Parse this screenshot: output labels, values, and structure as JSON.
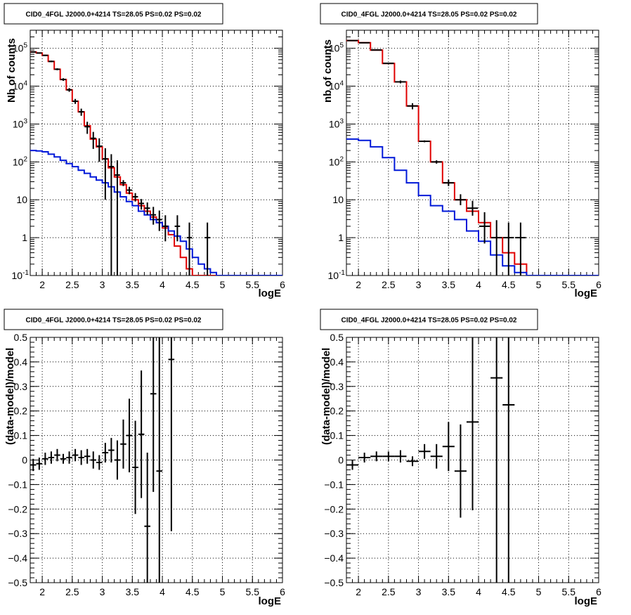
{
  "colors": {
    "data": "#000000",
    "total_model": "#e00000",
    "component": "#0018d8",
    "grid": "#000000",
    "background": "#ffffff"
  },
  "chart_data": [
    {
      "type": "line",
      "title": "CID0_4FGL J2000.0+4214 TS=28.05 PS=0.02 PS=0.02",
      "xlabel": "logE",
      "ylabel": "Nb of counts",
      "xlim": [
        1.8,
        6.0
      ],
      "ylim": [
        0.1,
        300000
      ],
      "yscale": "log",
      "grid": true,
      "x_ticks": [
        2,
        2.5,
        3,
        3.5,
        4,
        4.5,
        5,
        5.5,
        6
      ],
      "x_tick_labels": [
        "2",
        "2.5",
        "3",
        "3.5",
        "4",
        "4.5",
        "5",
        "5.5",
        "6"
      ],
      "y_ticks": [
        0.1,
        1,
        10,
        100,
        1000,
        10000,
        100000
      ],
      "y_tick_labels": [
        "10^-1",
        "1",
        "10",
        "10^2",
        "10^3",
        "10^4",
        "10^5"
      ],
      "bin_edges": [
        1.8,
        1.9,
        2.0,
        2.1,
        2.2,
        2.3,
        2.4,
        2.5,
        2.6,
        2.7,
        2.8,
        2.9,
        3.0,
        3.1,
        3.2,
        3.3,
        3.4,
        3.5,
        3.6,
        3.7,
        3.8,
        3.9,
        4.0,
        4.1,
        4.2,
        4.3,
        4.4,
        4.5,
        4.6,
        4.7,
        4.8,
        4.9,
        5.0,
        5.1,
        5.2,
        5.3,
        5.4,
        5.5,
        5.6,
        5.7,
        5.8,
        5.9,
        6.0
      ],
      "series": [
        {
          "style": "step",
          "color": "red",
          "values": [
            80000,
            75000,
            65000,
            45000,
            28000,
            15000,
            8000,
            4000,
            2100,
            900,
            400,
            250,
            120,
            70,
            40,
            25,
            15,
            10,
            7,
            5,
            3.5,
            2.5,
            1.8,
            1.2,
            0.6,
            0.3,
            0.15,
            0.1,
            0.1,
            0.1,
            0.1,
            0.1,
            0.1,
            0.1,
            0.1,
            0.1,
            0.1,
            0.1,
            0.1,
            0.1,
            0.1,
            0.1
          ]
        },
        {
          "style": "step",
          "color": "blue",
          "values": [
            200,
            195,
            185,
            160,
            135,
            110,
            90,
            75,
            60,
            50,
            40,
            33,
            28,
            22,
            16,
            12,
            9,
            7,
            5,
            4,
            3,
            2.5,
            2,
            1.5,
            1.1,
            0.8,
            0.5,
            0.3,
            0.2,
            0.15,
            0.12,
            0.1,
            0.1,
            0.1,
            0.1,
            0.1,
            0.1,
            0.1,
            0.1,
            0.1,
            0.1,
            0.1
          ]
        },
        {
          "style": "errorbar",
          "color": "black",
          "x": [
            1.85,
            1.95,
            2.05,
            2.15,
            2.25,
            2.35,
            2.45,
            2.55,
            2.65,
            2.75,
            2.85,
            2.95,
            3.05,
            3.15,
            3.25,
            3.35,
            3.45,
            3.55,
            3.65,
            3.75,
            3.85,
            3.95,
            4.05,
            4.25,
            4.45,
            4.75
          ],
          "y": [
            80000,
            75000,
            65000,
            45000,
            28000,
            15000,
            8000,
            4000,
            2100,
            850,
            420,
            260,
            120,
            75,
            45,
            28,
            18,
            12,
            8,
            6,
            4,
            3,
            2,
            2,
            1,
            1
          ],
          "yerr_low": [
            3000,
            2800,
            2600,
            2100,
            1700,
            1200,
            900,
            600,
            450,
            300,
            200,
            160,
            110,
            85,
            65,
            5,
            4,
            3,
            2.5,
            2,
            1.8,
            1.5,
            1.2,
            1.2,
            0.92,
            0.92
          ],
          "yerr_high": [
            3000,
            2800,
            2600,
            2100,
            1700,
            1200,
            900,
            600,
            450,
            300,
            200,
            160,
            110,
            85,
            65,
            5,
            4,
            3,
            2.5,
            2.5,
            2.5,
            2.2,
            1.9,
            1.9,
            1.5,
            1.5
          ]
        }
      ]
    },
    {
      "type": "line",
      "title": "CID0_4FGL J2000.0+4214 TS=28.05 PS=0.02 PS=0.02",
      "xlabel": "logE",
      "ylabel": "nb of counts",
      "xlim": [
        1.8,
        6.0
      ],
      "ylim": [
        0.1,
        300000
      ],
      "yscale": "log",
      "grid": true,
      "x_ticks": [
        2,
        2.5,
        3,
        3.5,
        4,
        4.5,
        5,
        5.5,
        6
      ],
      "x_tick_labels": [
        "2",
        "2.5",
        "3",
        "3.5",
        "4",
        "4.5",
        "5",
        "5.5",
        "6"
      ],
      "y_ticks": [
        0.1,
        1,
        10,
        100,
        1000,
        10000,
        100000
      ],
      "y_tick_labels": [
        "10^-1",
        "1",
        "10",
        "10^2",
        "10^3",
        "10^4",
        "10^5"
      ],
      "bin_edges": [
        1.8,
        2.0,
        2.2,
        2.4,
        2.6,
        2.8,
        3.0,
        3.2,
        3.4,
        3.6,
        3.8,
        4.0,
        4.2,
        4.4,
        4.6,
        4.8,
        5.0,
        5.2,
        5.4,
        5.6,
        5.8,
        6.0
      ],
      "series": [
        {
          "style": "step",
          "color": "red",
          "values": [
            160000,
            140000,
            90000,
            40000,
            13000,
            3000,
            350,
            100,
            28,
            10,
            5,
            2.5,
            1,
            0.4,
            0.2,
            0.1,
            0.1,
            0.1,
            0.1,
            0.1,
            0.1
          ]
        },
        {
          "style": "step",
          "color": "blue",
          "values": [
            400,
            370,
            250,
            130,
            60,
            28,
            13,
            7,
            5,
            3,
            1.5,
            0.8,
            0.35,
            0.18,
            0.12,
            0.1,
            0.1,
            0.1,
            0.1,
            0.1,
            0.1
          ]
        },
        {
          "style": "errorbar",
          "color": "black",
          "x": [
            1.9,
            2.1,
            2.3,
            2.5,
            2.7,
            2.9,
            3.1,
            3.3,
            3.5,
            3.7,
            3.9,
            4.1,
            4.3,
            4.5,
            4.7
          ],
          "y": [
            160000,
            140000,
            90000,
            40000,
            13000,
            3000,
            350,
            100,
            28,
            10,
            6,
            2,
            1,
            1,
            1
          ],
          "yerr_low": [
            4000,
            3700,
            3000,
            2000,
            1100,
            550,
            20,
            10,
            5,
            2.8,
            2.2,
            1.3,
            0.9,
            0.92,
            0.92
          ],
          "yerr_high": [
            4000,
            3700,
            3000,
            2000,
            1100,
            550,
            20,
            10,
            6,
            4,
            3.4,
            2.7,
            1.9,
            1.5,
            1.5
          ]
        }
      ]
    },
    {
      "type": "scatter",
      "title": "CID0_4FGL J2000.0+4214 TS=28.05 PS=0.02 PS=0.02",
      "xlabel": "logE",
      "ylabel": "(data-model)/model",
      "xlim": [
        1.8,
        6.0
      ],
      "ylim": [
        -0.5,
        0.5
      ],
      "grid": true,
      "x_ticks": [
        2,
        2.5,
        3,
        3.5,
        4,
        4.5,
        5,
        5.5,
        6
      ],
      "x_tick_labels": [
        "2",
        "2.5",
        "3",
        "3.5",
        "4",
        "4.5",
        "5",
        "5.5",
        "6"
      ],
      "y_ticks": [
        -0.5,
        -0.4,
        -0.3,
        -0.2,
        -0.1,
        0,
        0.1,
        0.2,
        0.3,
        0.4,
        0.5
      ],
      "y_tick_labels": [
        "−0.5",
        "−0.4",
        "−0.3",
        "−0.2",
        "−0.1",
        "0",
        "0.1",
        "0.2",
        "0.3",
        "0.4",
        "0.5"
      ],
      "series": [
        {
          "style": "errorbar",
          "color": "black",
          "x": [
            1.85,
            1.95,
            2.05,
            2.15,
            2.25,
            2.35,
            2.45,
            2.55,
            2.65,
            2.75,
            2.85,
            2.95,
            3.05,
            3.15,
            3.25,
            3.35,
            3.45,
            3.55,
            3.65,
            3.75,
            3.85,
            3.95,
            4.15
          ],
          "y": [
            -0.02,
            -0.015,
            0.005,
            0.01,
            0.02,
            0.005,
            0.01,
            0.02,
            0.01,
            0.015,
            0.0,
            -0.01,
            0.03,
            0.04,
            0.0,
            0.065,
            0.1,
            -0.03,
            0.105,
            -0.27,
            0.27,
            -0.045,
            0.41
          ],
          "yerr": [
            0.025,
            0.025,
            0.025,
            0.025,
            0.025,
            0.02,
            0.025,
            0.025,
            0.03,
            0.03,
            0.035,
            0.03,
            0.04,
            0.05,
            0.08,
            0.1,
            0.15,
            0.19,
            0.26,
            0.3,
            0.4,
            0.6,
            0.7
          ],
          "xerr": [
            0.05,
            0.05,
            0.05,
            0.05,
            0.05,
            0.05,
            0.05,
            0.05,
            0.05,
            0.05,
            0.05,
            0.05,
            0.05,
            0.05,
            0.05,
            0.05,
            0.05,
            0.05,
            0.05,
            0.05,
            0.05,
            0.05,
            0.05
          ]
        }
      ]
    },
    {
      "type": "scatter",
      "title": "CID0_4FGL J2000.0+4214 TS=28.05 PS=0.02 PS=0.02",
      "xlabel": "logE",
      "ylabel": "(data-model)/model",
      "xlim": [
        1.8,
        6.0
      ],
      "ylim": [
        -0.5,
        0.5
      ],
      "grid": true,
      "x_ticks": [
        2,
        2.5,
        3,
        3.5,
        4,
        4.5,
        5,
        5.5,
        6
      ],
      "x_tick_labels": [
        "2",
        "2.5",
        "3",
        "3.5",
        "4",
        "4.5",
        "5",
        "5.5",
        "6"
      ],
      "y_ticks": [
        -0.5,
        -0.4,
        -0.3,
        -0.2,
        -0.1,
        0,
        0.1,
        0.2,
        0.3,
        0.4,
        0.5
      ],
      "y_tick_labels": [
        "−0.5",
        "−0.4",
        "−0.3",
        "−0.2",
        "−0.1",
        "0",
        "0.1",
        "0.2",
        "0.3",
        "0.4",
        "0.5"
      ],
      "series": [
        {
          "style": "errorbar",
          "color": "black",
          "x": [
            1.9,
            2.1,
            2.3,
            2.5,
            2.7,
            2.9,
            3.1,
            3.3,
            3.5,
            3.7,
            3.9,
            4.3,
            4.5
          ],
          "y": [
            -0.02,
            0.01,
            0.015,
            0.015,
            0.015,
            -0.005,
            0.035,
            0.015,
            0.055,
            -0.045,
            0.155,
            0.335,
            0.225
          ],
          "yerr": [
            0.02,
            0.02,
            0.02,
            0.02,
            0.025,
            0.02,
            0.03,
            0.05,
            0.1,
            0.19,
            0.36,
            1.0,
            1.0
          ],
          "xerr": [
            0.1,
            0.1,
            0.1,
            0.1,
            0.1,
            0.1,
            0.1,
            0.1,
            0.1,
            0.1,
            0.1,
            0.1,
            0.1
          ]
        }
      ]
    }
  ]
}
